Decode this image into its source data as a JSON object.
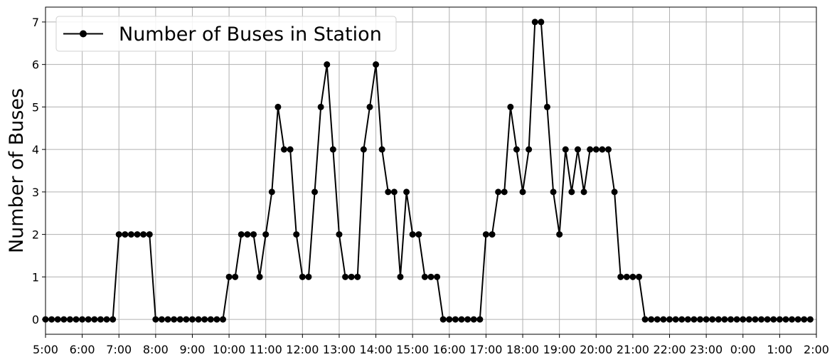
{
  "chart_data": {
    "type": "line",
    "title": "",
    "xlabel": "",
    "ylabel": "Number of Buses",
    "x_ticks": [
      "5:00",
      "6:00",
      "7:00",
      "8:00",
      "9:00",
      "10:00",
      "11:00",
      "12:00",
      "13:00",
      "14:00",
      "15:00",
      "16:00",
      "17:00",
      "18:00",
      "19:00",
      "20:00",
      "21:00",
      "22:00",
      "23:00",
      "0:00",
      "1:00",
      "2:00"
    ],
    "y_ticks": [
      "0",
      "1",
      "2",
      "3",
      "4",
      "5",
      "6",
      "7"
    ],
    "xlim_hours": [
      5,
      26
    ],
    "ylim": [
      -0.35,
      7.35
    ],
    "grid": true,
    "legend_position": "upper-left",
    "series": [
      {
        "name": "Number of Buses in Station",
        "color": "#000000",
        "marker": "circle",
        "start_hour": 5,
        "step_minutes": 10,
        "values": [
          0,
          0,
          0,
          0,
          0,
          0,
          0,
          0,
          0,
          0,
          0,
          0,
          2,
          2,
          2,
          2,
          2,
          2,
          0,
          0,
          0,
          0,
          0,
          0,
          0,
          0,
          0,
          0,
          0,
          0,
          1,
          1,
          2,
          2,
          2,
          1,
          2,
          3,
          5,
          4,
          4,
          2,
          1,
          1,
          3,
          5,
          6,
          4,
          2,
          1,
          1,
          1,
          4,
          5,
          6,
          4,
          3,
          3,
          1,
          3,
          2,
          2,
          1,
          1,
          1,
          0,
          0,
          0,
          0,
          0,
          0,
          0,
          2,
          2,
          3,
          3,
          5,
          4,
          3,
          4,
          7,
          7,
          5,
          3,
          2,
          4,
          3,
          4,
          3,
          4,
          4,
          4,
          4,
          3,
          1,
          1,
          1,
          1,
          0,
          0,
          0,
          0,
          0,
          0,
          0,
          0,
          0,
          0,
          0,
          0,
          0,
          0,
          0,
          0,
          0,
          0,
          0,
          0,
          0,
          0,
          0,
          0,
          0,
          0,
          0,
          0
        ]
      }
    ]
  }
}
